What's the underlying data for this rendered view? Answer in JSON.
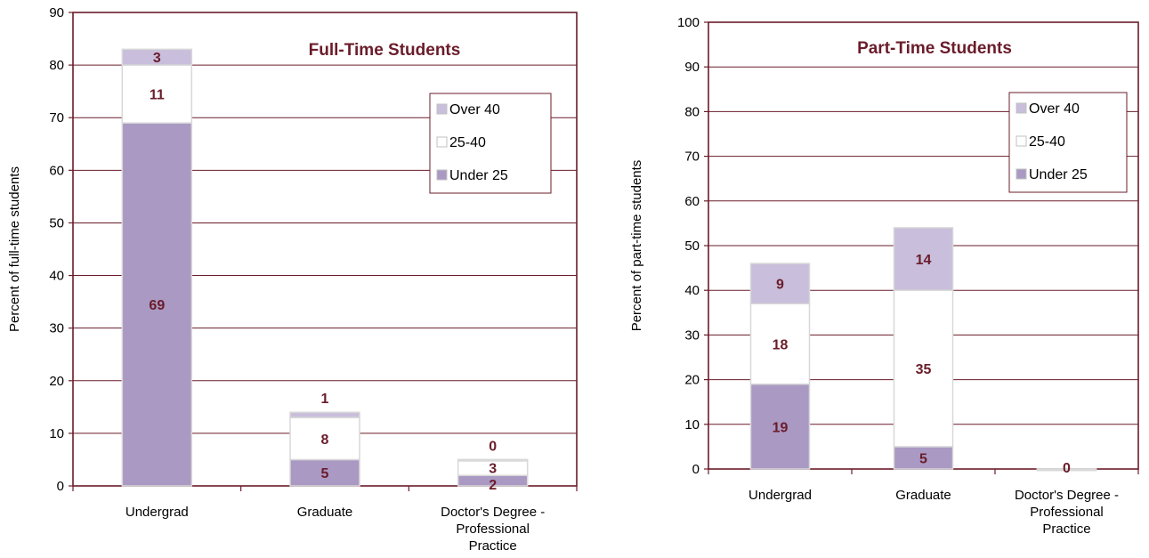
{
  "chart_data": [
    {
      "type": "bar",
      "stacked": true,
      "title": "Full-Time Students",
      "ylabel": "Percent of full-time students",
      "ylim": [
        0,
        90
      ],
      "yticks": [
        0,
        10,
        20,
        30,
        40,
        50,
        60,
        70,
        80,
        90
      ],
      "categories": [
        [
          "Undergrad"
        ],
        [
          "Graduate"
        ],
        [
          "Doctor's Degree -",
          "Professional",
          "Practice"
        ]
      ],
      "series": [
        {
          "name": "Under 25",
          "values": [
            69,
            5,
            2
          ],
          "labels": [
            "69",
            "5",
            "2"
          ]
        },
        {
          "name": "25-40",
          "values": [
            11,
            8,
            3
          ],
          "labels": [
            "11",
            "8",
            "3"
          ]
        },
        {
          "name": "Over 40",
          "values": [
            3,
            1,
            0
          ],
          "labels": [
            "3",
            "1",
            "0"
          ]
        }
      ],
      "legend": "top-right",
      "grid": true
    },
    {
      "type": "bar",
      "stacked": true,
      "title": "Part-Time Students",
      "ylabel": "Percent of part-time students",
      "ylim": [
        0,
        100
      ],
      "yticks": [
        0,
        10,
        20,
        30,
        40,
        50,
        60,
        70,
        80,
        90,
        100
      ],
      "categories": [
        [
          "Undergrad"
        ],
        [
          "Graduate"
        ],
        [
          "Doctor's Degree -",
          "Professional",
          "Practice"
        ]
      ],
      "series": [
        {
          "name": "Under 25",
          "values": [
            19,
            5,
            0
          ],
          "labels": [
            "19",
            "5",
            "0"
          ]
        },
        {
          "name": "25-40",
          "values": [
            18,
            35,
            0
          ],
          "labels": [
            "18",
            "35",
            ""
          ]
        },
        {
          "name": "Over 40",
          "values": [
            9,
            14,
            0
          ],
          "labels": [
            "9",
            "14",
            ""
          ]
        }
      ],
      "legend": "top-right",
      "grid": true
    }
  ],
  "colors": {
    "under25": "#aa99c3",
    "mid": "#ffffff",
    "over40": "#c9bedb",
    "axis": "#6a1c2a",
    "label": "#6a1c2a"
  }
}
